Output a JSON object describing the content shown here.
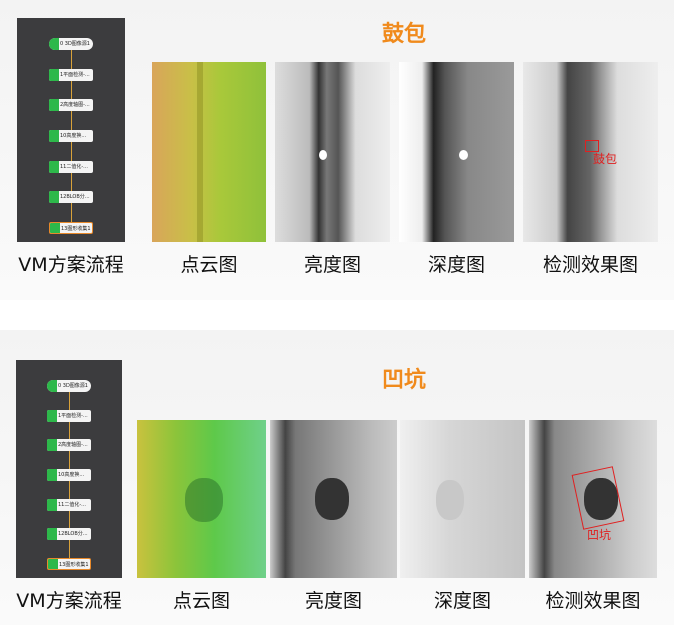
{
  "sections": [
    {
      "title": "鼓包",
      "flow_label": "VM方案流程",
      "flow_nodes": [
        "0 3D图像源1",
        "1平面检测-...",
        "2高度轴图-...",
        "10高度换...",
        "11二值化-...",
        "12BLOB分...",
        "13图形收集1"
      ],
      "images": [
        "点云图",
        "亮度图",
        "深度图",
        "检测效果图"
      ],
      "defect_label": "鼓包"
    },
    {
      "title": "凹坑",
      "flow_label": "VM方案流程",
      "flow_nodes": [
        "0 3D图像源1",
        "1平面检测-...",
        "2高度轴图-...",
        "10高度换...",
        "11二值化-...",
        "12BLOB分...",
        "13图形收集1"
      ],
      "images": [
        "点云图",
        "亮度图",
        "深度图",
        "检测效果图"
      ],
      "defect_label": "凹坑"
    }
  ],
  "colors": {
    "title": "#f08a1c",
    "defect_mark": "#e02020",
    "flow_bg": "#3c3c3e",
    "node_icon": "#2db84a"
  }
}
